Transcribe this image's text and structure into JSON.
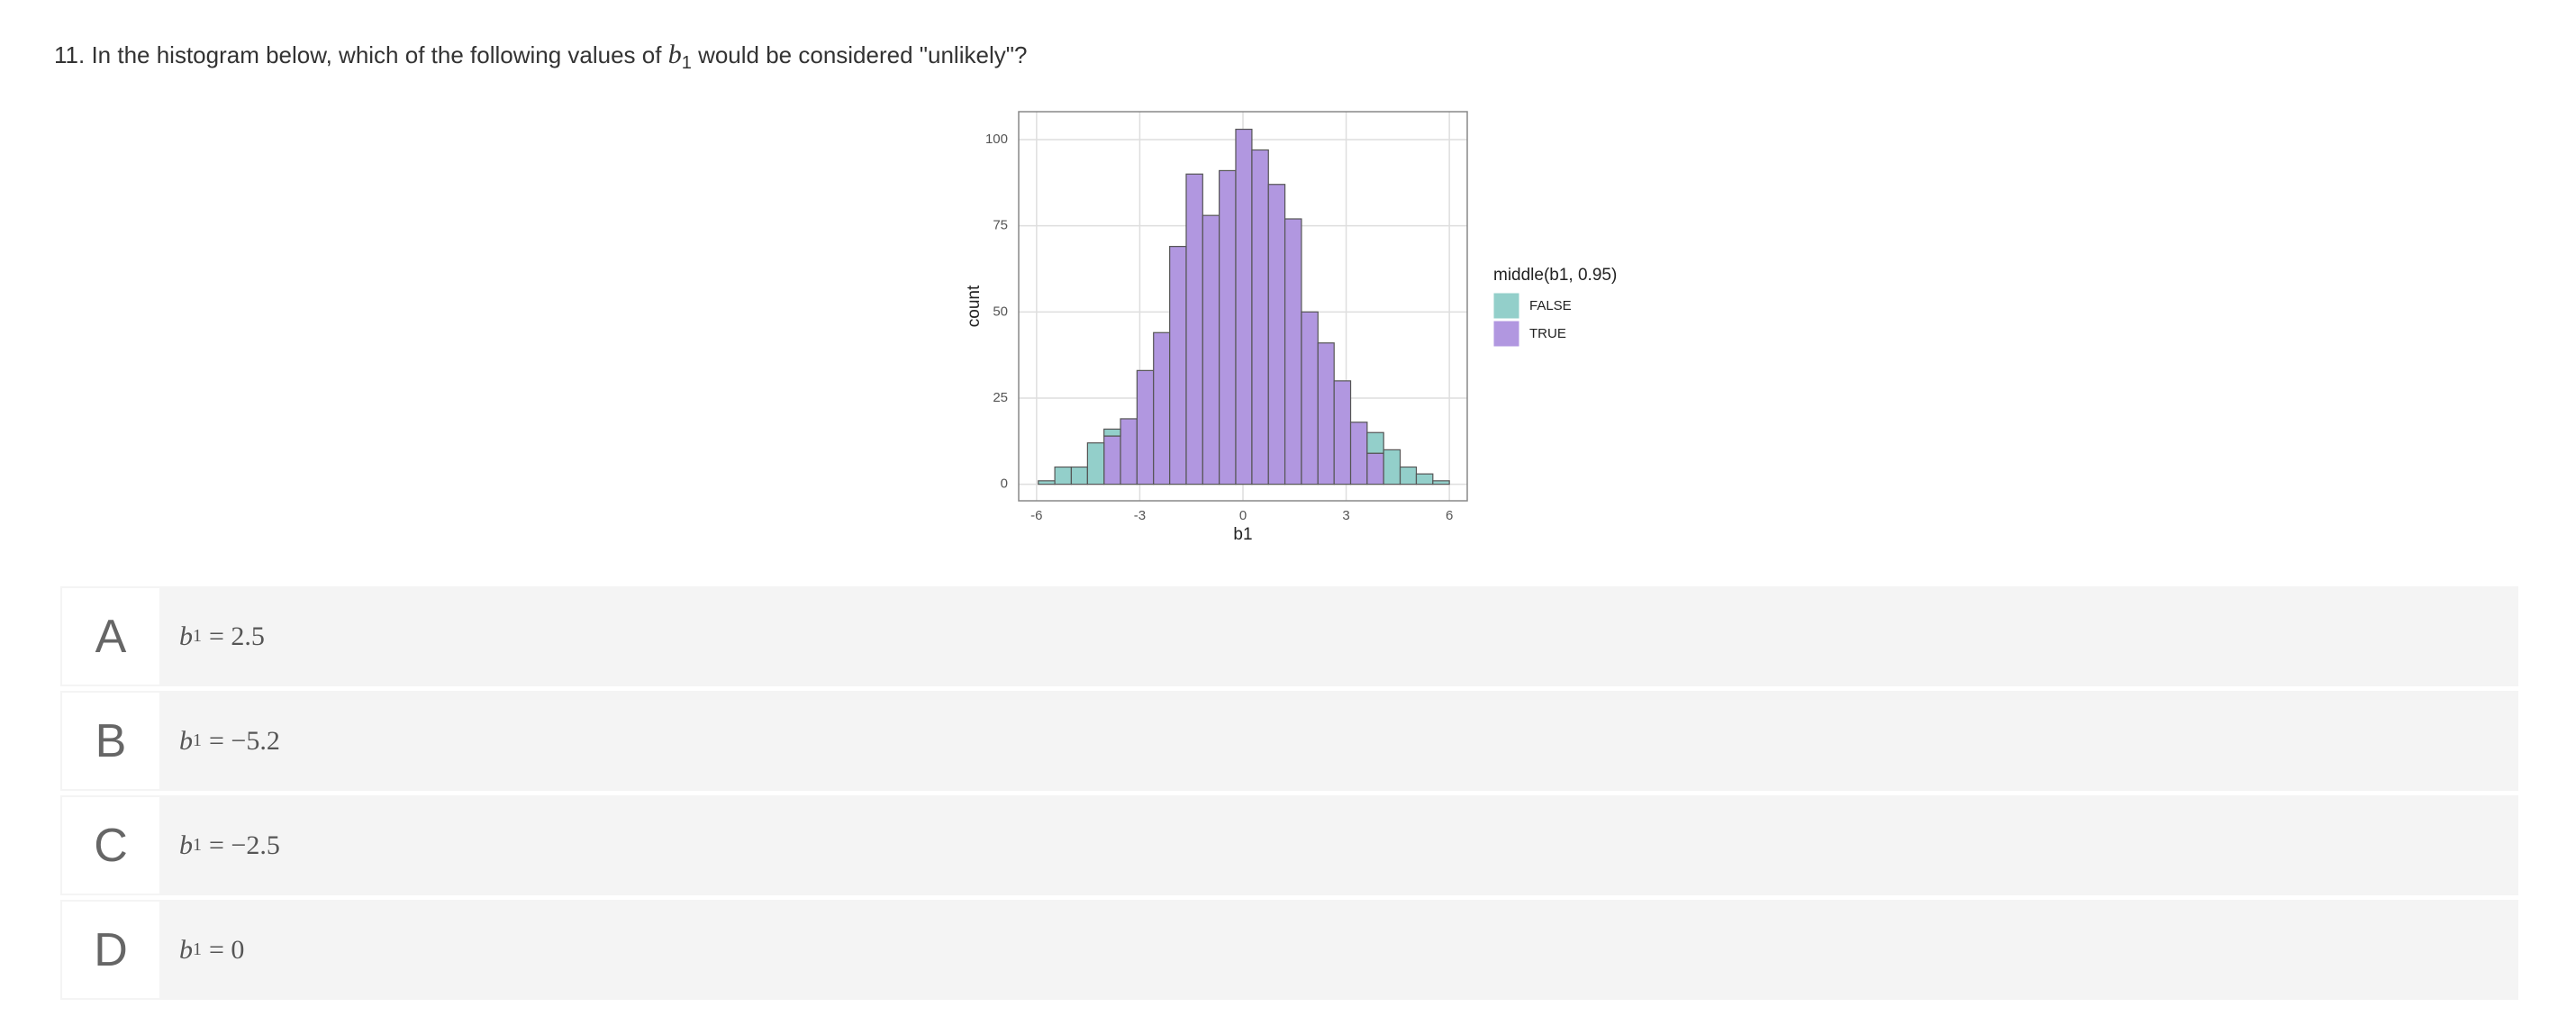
{
  "question": {
    "prefix": "11. In the histogram below, which of the following values of",
    "var": "b",
    "sub": "1",
    "suffix": "would be considered \"unlikely\"?"
  },
  "chart_data": {
    "type": "histogram",
    "x_label": "b1",
    "y_label": "count",
    "legend_title": "middle(b1, 0.95)",
    "bins": [
      -5.95,
      -5.47,
      -4.99,
      -4.52,
      -4.04,
      -3.56,
      -3.08,
      -2.6,
      -2.13,
      -1.65,
      -1.17,
      -0.69,
      -0.21,
      0.26,
      0.74,
      1.22,
      1.7,
      2.18,
      2.65,
      3.13,
      3.61,
      4.09,
      4.57,
      5.04,
      5.52,
      6.0
    ],
    "series": [
      {
        "name": "FALSE",
        "color": "#93cfca",
        "values": [
          1,
          5,
          5,
          12,
          2,
          0,
          0,
          0,
          0,
          0,
          0,
          0,
          0,
          0,
          0,
          0,
          0,
          0,
          0,
          0,
          6,
          10,
          5,
          3,
          1
        ]
      },
      {
        "name": "TRUE",
        "color": "#b197e0",
        "values": [
          0,
          0,
          0,
          0,
          14,
          19,
          33,
          44,
          69,
          90,
          78,
          91,
          103,
          97,
          87,
          77,
          50,
          41,
          30,
          18,
          9,
          0,
          0,
          0,
          0
        ]
      }
    ],
    "stacked": true,
    "grid": true,
    "xlim": [
      -6.52,
      6.52
    ],
    "xticks": [
      -6,
      -3,
      0,
      3,
      6
    ],
    "ylim": [
      -4.8,
      108.1
    ],
    "yticks": [
      0,
      25,
      50,
      75,
      100
    ]
  },
  "options": [
    {
      "letter": "A",
      "var": "b",
      "sub": "1",
      "rhs": "= 2.5"
    },
    {
      "letter": "B",
      "var": "b",
      "sub": "1",
      "rhs": "= −5.2"
    },
    {
      "letter": "C",
      "var": "b",
      "sub": "1",
      "rhs": "= −2.5"
    },
    {
      "letter": "D",
      "var": "b",
      "sub": "1",
      "rhs": "= 0"
    }
  ]
}
